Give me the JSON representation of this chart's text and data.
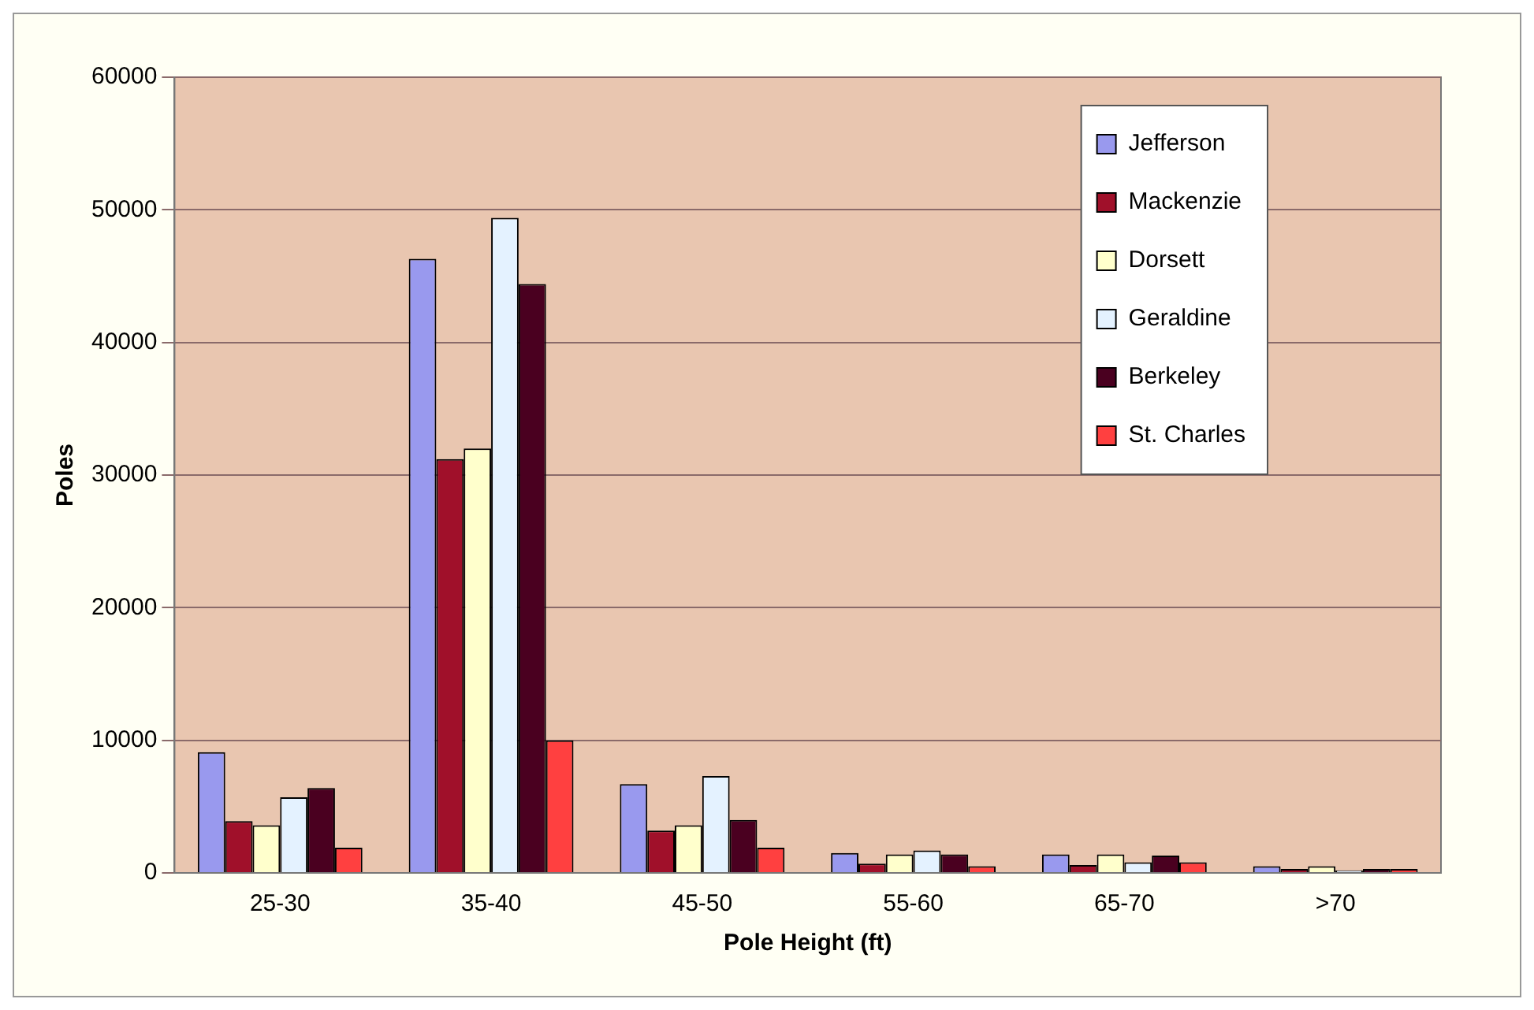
{
  "chart_data": {
    "type": "bar",
    "xlabel": "Pole Height (ft)",
    "ylabel": "Poles",
    "categories": [
      "25-30",
      "35-40",
      "45-50",
      "55-60",
      "65-70",
      ">70"
    ],
    "series": [
      {
        "name": "Jefferson",
        "color": "#9999ee",
        "values": [
          9100,
          46300,
          6700,
          1500,
          1400,
          500
        ]
      },
      {
        "name": "Mackenzie",
        "color": "#a0102a",
        "values": [
          3900,
          31200,
          3200,
          700,
          600,
          300
        ]
      },
      {
        "name": "Dorsett",
        "color": "#ffffcc",
        "values": [
          3600,
          32000,
          3600,
          1400,
          1400,
          500
        ]
      },
      {
        "name": "Geraldine",
        "color": "#e4f2ff",
        "values": [
          5700,
          49400,
          7300,
          1700,
          800,
          200
        ]
      },
      {
        "name": "Berkeley",
        "color": "#4a0020",
        "values": [
          6400,
          44400,
          4000,
          1400,
          1300,
          300
        ]
      },
      {
        "name": "St. Charles",
        "color": "#ff4040",
        "values": [
          1900,
          10000,
          1900,
          500,
          800,
          300
        ]
      }
    ],
    "ylim": [
      0,
      60000
    ],
    "yticks": [
      0,
      10000,
      20000,
      30000,
      40000,
      50000,
      60000
    ],
    "grid": "y",
    "legend": "top right"
  }
}
